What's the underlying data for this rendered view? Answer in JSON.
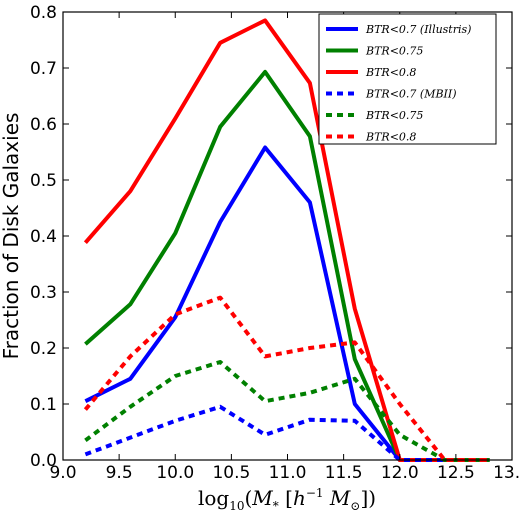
{
  "chart_data": {
    "type": "line",
    "xlabel": "log10(M* [h^-1 M⊙])",
    "ylabel": "Fraction of Disk Galaxies",
    "xlim": [
      9.0,
      13.0
    ],
    "ylim": [
      0.0,
      0.8
    ],
    "xticks": [
      "9.0",
      "9.5",
      "10.0",
      "10.5",
      "11.0",
      "11.5",
      "12.0",
      "12.5",
      "13.0"
    ],
    "yticks": [
      "0.0",
      "0.1",
      "0.2",
      "0.3",
      "0.4",
      "0.5",
      "0.6",
      "0.7",
      "0.8"
    ],
    "grid": false,
    "legend_position": "top-right",
    "series": [
      {
        "name": "BTR<0.7 (Illustris)",
        "color": "#0000ff",
        "dash": "solid",
        "x": [
          9.2,
          9.6,
          10.0,
          10.4,
          10.8,
          11.2,
          11.6,
          12.0,
          12.4,
          12.8
        ],
        "y": [
          0.105,
          0.145,
          0.255,
          0.425,
          0.558,
          0.46,
          0.1,
          0.0,
          0.0,
          0.0
        ]
      },
      {
        "name": "BTR<0.75",
        "color": "#008000",
        "dash": "solid",
        "x": [
          9.2,
          9.6,
          10.0,
          10.4,
          10.8,
          11.2,
          11.6,
          12.0,
          12.4,
          12.8
        ],
        "y": [
          0.207,
          0.278,
          0.405,
          0.595,
          0.693,
          0.578,
          0.18,
          0.0,
          0.0,
          0.0
        ]
      },
      {
        "name": "BTR<0.8",
        "color": "#ff0000",
        "dash": "solid",
        "x": [
          9.2,
          9.6,
          10.0,
          10.4,
          10.8,
          11.2,
          11.6,
          12.0,
          12.4,
          12.8
        ],
        "y": [
          0.388,
          0.48,
          0.61,
          0.745,
          0.785,
          0.673,
          0.27,
          0.0,
          0.0,
          0.0
        ]
      },
      {
        "name": "BTR<0.7 (MBII)",
        "color": "#0000ff",
        "dash": "dotted",
        "x": [
          9.2,
          9.6,
          10.0,
          10.4,
          10.8,
          11.2,
          11.6,
          12.0,
          12.4,
          12.8
        ],
        "y": [
          0.01,
          0.04,
          0.07,
          0.095,
          0.045,
          0.072,
          0.07,
          0.0,
          0.0,
          0.0
        ]
      },
      {
        "name": "BTR<0.75",
        "color": "#008000",
        "dash": "dotted",
        "x": [
          9.2,
          9.6,
          10.0,
          10.4,
          10.8,
          11.2,
          11.6,
          12.0,
          12.4,
          12.8
        ],
        "y": [
          0.035,
          0.095,
          0.15,
          0.175,
          0.105,
          0.12,
          0.145,
          0.045,
          0.0,
          0.0
        ]
      },
      {
        "name": "BTR<0.8",
        "color": "#ff0000",
        "dash": "dotted",
        "x": [
          9.2,
          9.6,
          10.0,
          10.4,
          10.8,
          11.2,
          11.6,
          12.0,
          12.4,
          12.8
        ],
        "y": [
          0.09,
          0.185,
          0.26,
          0.29,
          0.185,
          0.2,
          0.21,
          0.1,
          0.0,
          0.0
        ]
      }
    ]
  }
}
